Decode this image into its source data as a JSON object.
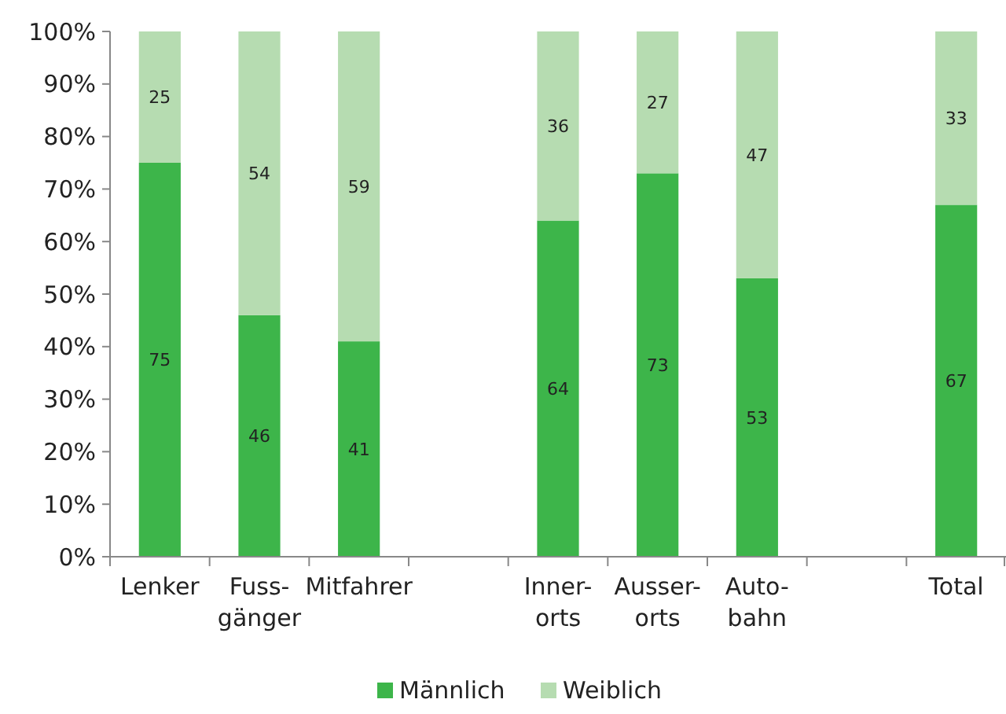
{
  "chart_data": {
    "type": "bar",
    "stacked": true,
    "categories": [
      "Lenker",
      "Fuss-\ngänger",
      "Mitfahrer",
      null,
      "Inner-\norts",
      "Ausser-\norts",
      "Auto-\nbahn",
      null,
      "Total"
    ],
    "series": [
      {
        "name": "Männlich",
        "color": "#3db54a",
        "values": [
          75,
          46,
          41,
          null,
          64,
          73,
          53,
          null,
          67
        ]
      },
      {
        "name": "Weiblich",
        "color": "#b6dcb1",
        "values": [
          25,
          54,
          59,
          null,
          36,
          27,
          47,
          null,
          33
        ]
      }
    ],
    "ylim": [
      0,
      100
    ],
    "yticks": [
      {
        "value": 0,
        "label": "0%"
      },
      {
        "value": 10,
        "label": "10%"
      },
      {
        "value": 20,
        "label": "20%"
      },
      {
        "value": 30,
        "label": "30%"
      },
      {
        "value": 40,
        "label": "40%"
      },
      {
        "value": 50,
        "label": "50%"
      },
      {
        "value": 60,
        "label": "60%"
      },
      {
        "value": 70,
        "label": "70%"
      },
      {
        "value": 80,
        "label": "80%"
      },
      {
        "value": 90,
        "label": "90%"
      },
      {
        "value": 100,
        "label": "100%"
      }
    ],
    "data_labels": true,
    "legend": "bottom",
    "grid": false
  }
}
